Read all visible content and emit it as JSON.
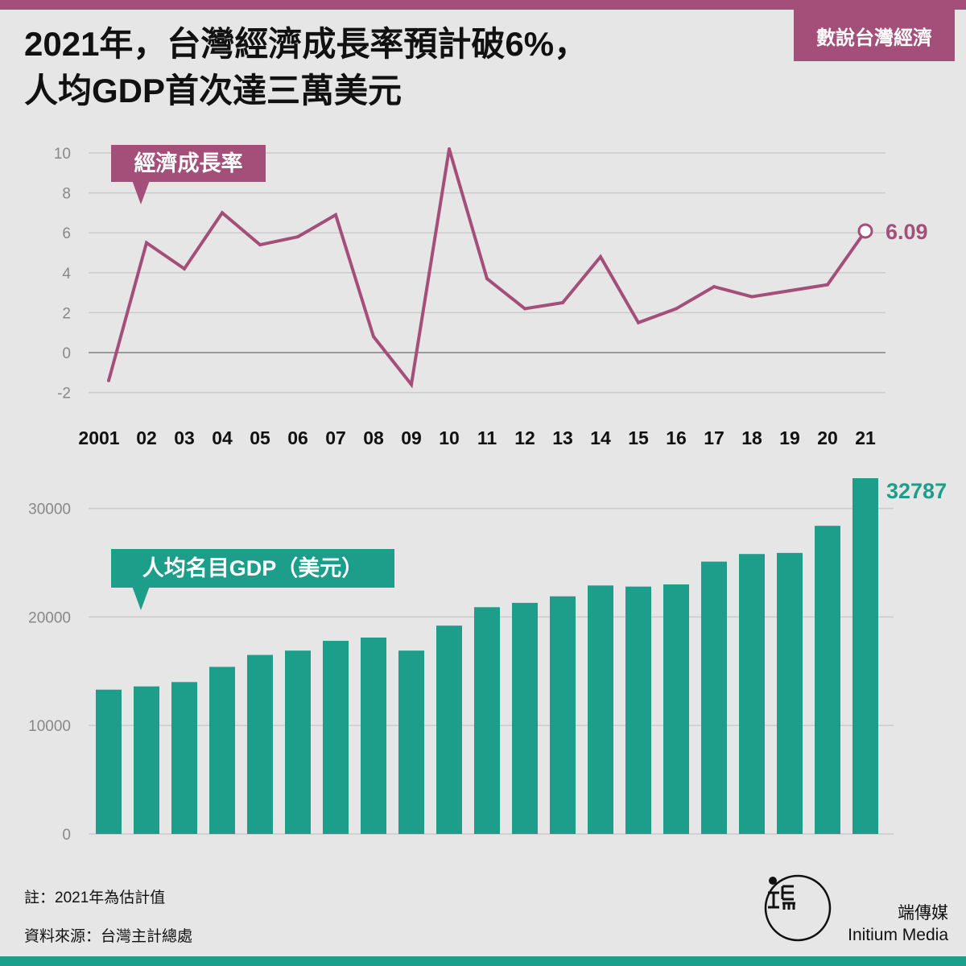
{
  "header": {
    "title_line1": "2021年，台灣經濟成長率預計破6%，",
    "title_line2": "人均GDP首次達三萬美元",
    "series_tag": "數說台灣經濟"
  },
  "colors": {
    "accent": "#a34f79",
    "teal": "#1c9e8b",
    "background": "#e6e6e6"
  },
  "chart_data": [
    {
      "type": "line",
      "title": "經濟成長率",
      "x_labels": [
        "2001",
        "02",
        "03",
        "04",
        "05",
        "06",
        "07",
        "08",
        "09",
        "10",
        "11",
        "12",
        "13",
        "14",
        "15",
        "16",
        "17",
        "18",
        "19",
        "20",
        "21"
      ],
      "values": [
        -1.4,
        5.5,
        4.2,
        7.0,
        5.4,
        5.8,
        6.9,
        0.8,
        -1.6,
        10.2,
        3.7,
        2.2,
        2.5,
        4.8,
        1.5,
        2.2,
        3.3,
        2.8,
        3.1,
        3.4,
        6.09
      ],
      "ylim": [
        -2,
        10
      ],
      "yticks": [
        -2,
        0,
        2,
        4,
        6,
        8,
        10
      ],
      "end_label": "6.09",
      "grid": true
    },
    {
      "type": "bar",
      "title": "人均名目GDP（美元）",
      "categories": [
        "2001",
        "02",
        "03",
        "04",
        "05",
        "06",
        "07",
        "08",
        "09",
        "10",
        "11",
        "12",
        "13",
        "14",
        "15",
        "16",
        "17",
        "18",
        "19",
        "20",
        "21"
      ],
      "values": [
        13300,
        13600,
        14000,
        15400,
        16500,
        16900,
        17800,
        18100,
        16900,
        19200,
        20900,
        21300,
        21900,
        22900,
        22800,
        23000,
        25100,
        25800,
        25900,
        28400,
        32787
      ],
      "ylim": [
        0,
        33000
      ],
      "yticks": [
        0,
        10000,
        20000,
        30000
      ],
      "end_label": "32787",
      "grid": true
    }
  ],
  "footer": {
    "note": "註：2021年為估計值",
    "source": "資料來源：台灣主計總處"
  },
  "logo": {
    "cn_name": "端傳媒",
    "en_name": "Initium Media"
  }
}
